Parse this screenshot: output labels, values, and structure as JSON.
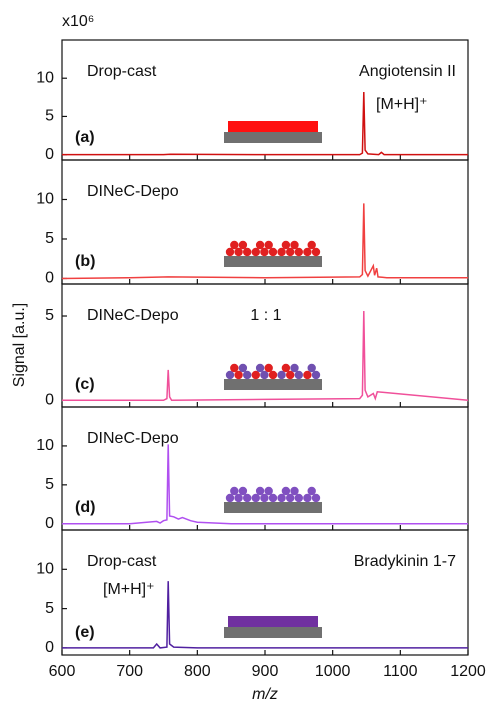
{
  "chart_data": [
    {
      "type": "line",
      "sample": "Drop-cast",
      "analyte": "Angiotensin II",
      "peak_label": "[M+H]⁺",
      "panel_label": "(a)",
      "y_multiplier": "x10⁶",
      "color": "#d01010",
      "xlim": [
        600,
        1200
      ],
      "xticks": [
        600,
        700,
        800,
        900,
        1000,
        1100,
        1200
      ],
      "ylim": [
        -0.7,
        15
      ],
      "yticks": [
        0,
        5,
        10
      ],
      "x": [
        600,
        750,
        760,
        900,
        1040,
        1044,
        1046,
        1048,
        1052,
        1068,
        1072,
        1076,
        1200
      ],
      "values": [
        0,
        0,
        0.05,
        0,
        0,
        0.2,
        8.2,
        0.6,
        0.1,
        0,
        0.3,
        0,
        0
      ]
    },
    {
      "type": "line",
      "sample": "DINeC-Depo",
      "panel_label": "(b)",
      "color": "#f04040",
      "xlim": [
        600,
        1200
      ],
      "xticks": [
        600,
        700,
        800,
        900,
        1000,
        1100,
        1200
      ],
      "ylim": [
        -0.7,
        15
      ],
      "yticks": [
        0,
        5,
        10
      ],
      "x": [
        600,
        700,
        757,
        900,
        1040,
        1044,
        1046,
        1048,
        1052,
        1060,
        1062,
        1065,
        1067,
        1080,
        1200
      ],
      "values": [
        0,
        0.1,
        0.2,
        0.1,
        0.2,
        0.5,
        9.5,
        1.0,
        0.3,
        1.6,
        0.4,
        1.3,
        0.2,
        0.1,
        0.1
      ]
    },
    {
      "type": "line",
      "sample": "DINeC-Depo",
      "ratio": "1 : 1",
      "panel_label": "(c)",
      "y_label": "Signal [a.u.]",
      "color": "#f0509a",
      "xlim": [
        600,
        1200
      ],
      "xticks": [
        600,
        700,
        800,
        900,
        1000,
        1100,
        1200
      ],
      "ylim": [
        -0.4,
        6.9
      ],
      "yticks": [
        0,
        5
      ],
      "x": [
        600,
        750,
        755,
        757,
        759,
        762,
        900,
        1040,
        1044,
        1046,
        1048,
        1052,
        1060,
        1063,
        1066,
        1200
      ],
      "values": [
        0,
        0,
        0.1,
        1.8,
        0.2,
        0,
        0.05,
        0.1,
        0.3,
        5.3,
        0.6,
        0.2,
        0.4,
        0.1,
        0.5,
        0
      ]
    },
    {
      "type": "line",
      "sample": "DINeC-Depo",
      "panel_label": "(d)",
      "color": "#b050f0",
      "xlim": [
        600,
        1200
      ],
      "xticks": [
        600,
        700,
        800,
        900,
        1000,
        1100,
        1200
      ],
      "ylim": [
        -0.8,
        15
      ],
      "yticks": [
        0,
        5,
        10
      ],
      "x": [
        600,
        700,
        740,
        745,
        750,
        755,
        757,
        759,
        765,
        772,
        778,
        790,
        800,
        850,
        1200
      ],
      "values": [
        0,
        0,
        0.3,
        0.1,
        0.4,
        0.5,
        10.2,
        1.0,
        0.9,
        0.6,
        0.8,
        0.4,
        0.2,
        0,
        0
      ]
    },
    {
      "type": "line",
      "sample": "Drop-cast",
      "analyte": "Bradykinin 1-7",
      "peak_label": "[M+H]⁺",
      "panel_label": "(e)",
      "x_label": "m/z",
      "color": "#5020a0",
      "xlim": [
        600,
        1200
      ],
      "xticks": [
        600,
        700,
        800,
        900,
        1000,
        1100,
        1200
      ],
      "ylim": [
        -0.9,
        15
      ],
      "yticks": [
        0,
        5,
        10
      ],
      "x": [
        600,
        735,
        740,
        745,
        755,
        757,
        759,
        765,
        800,
        1200
      ],
      "values": [
        0,
        0,
        0.5,
        0,
        0.1,
        8.5,
        0.5,
        0.1,
        0,
        0
      ]
    }
  ]
}
